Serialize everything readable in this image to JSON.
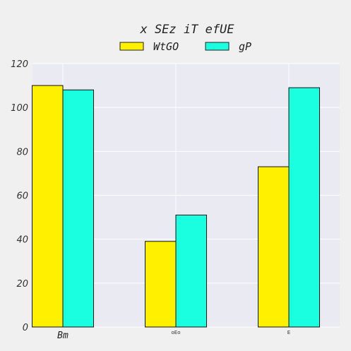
{
  "chart_data": {
    "type": "bar",
    "title": "x SEz iT efUE",
    "categories": [
      "Bm",
      "oEo",
      "E"
    ],
    "series": [
      {
        "name": "WtGO",
        "values": [
          110,
          39,
          73
        ],
        "color": "#fff000"
      },
      {
        "name": "gP",
        "values": [
          108,
          51,
          109
        ],
        "color": "#19ffdf"
      }
    ],
    "xlabel": "",
    "ylabel": "",
    "ylim": [
      0,
      120
    ],
    "yticks": [
      0,
      20,
      40,
      60,
      80,
      100,
      120
    ],
    "grid": true,
    "legend_position": "top-center",
    "plot_background": "#eaeaf2"
  }
}
